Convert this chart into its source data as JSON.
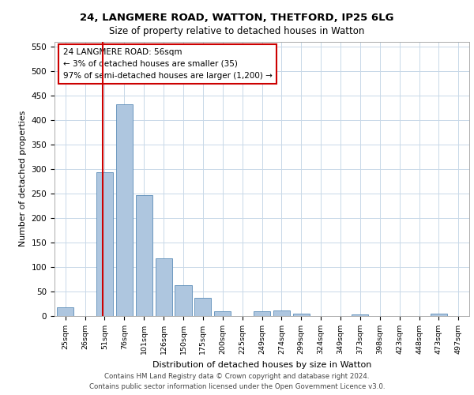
{
  "title1": "24, LANGMERE ROAD, WATTON, THETFORD, IP25 6LG",
  "title2": "Size of property relative to detached houses in Watton",
  "xlabel": "Distribution of detached houses by size in Watton",
  "ylabel": "Number of detached properties",
  "categories": [
    "25sqm",
    "26sqm",
    "51sqm",
    "76sqm",
    "101sqm",
    "126sqm",
    "150sqm",
    "175sqm",
    "200sqm",
    "225sqm",
    "249sqm",
    "274sqm",
    "299sqm",
    "324sqm",
    "349sqm",
    "373sqm",
    "398sqm",
    "423sqm",
    "448sqm",
    "473sqm",
    "497sqm"
  ],
  "values": [
    17,
    0,
    293,
    432,
    246,
    118,
    63,
    37,
    9,
    0,
    10,
    12,
    5,
    0,
    0,
    3,
    0,
    0,
    0,
    5,
    0
  ],
  "bar_color": "#aec6df",
  "bar_edge_color": "#5b8db8",
  "ref_line_color": "#cc0000",
  "annotation_text": "24 LANGMERE ROAD: 56sqm\n← 3% of detached houses are smaller (35)\n97% of semi-detached houses are larger (1,200) →",
  "annotation_box_color": "#cc0000",
  "ylim": [
    0,
    560
  ],
  "yticks": [
    0,
    50,
    100,
    150,
    200,
    250,
    300,
    350,
    400,
    450,
    500,
    550
  ],
  "footer_line1": "Contains HM Land Registry data © Crown copyright and database right 2024.",
  "footer_line2": "Contains public sector information licensed under the Open Government Licence v3.0.",
  "bg_color": "#ffffff",
  "grid_color": "#c8d8e8"
}
